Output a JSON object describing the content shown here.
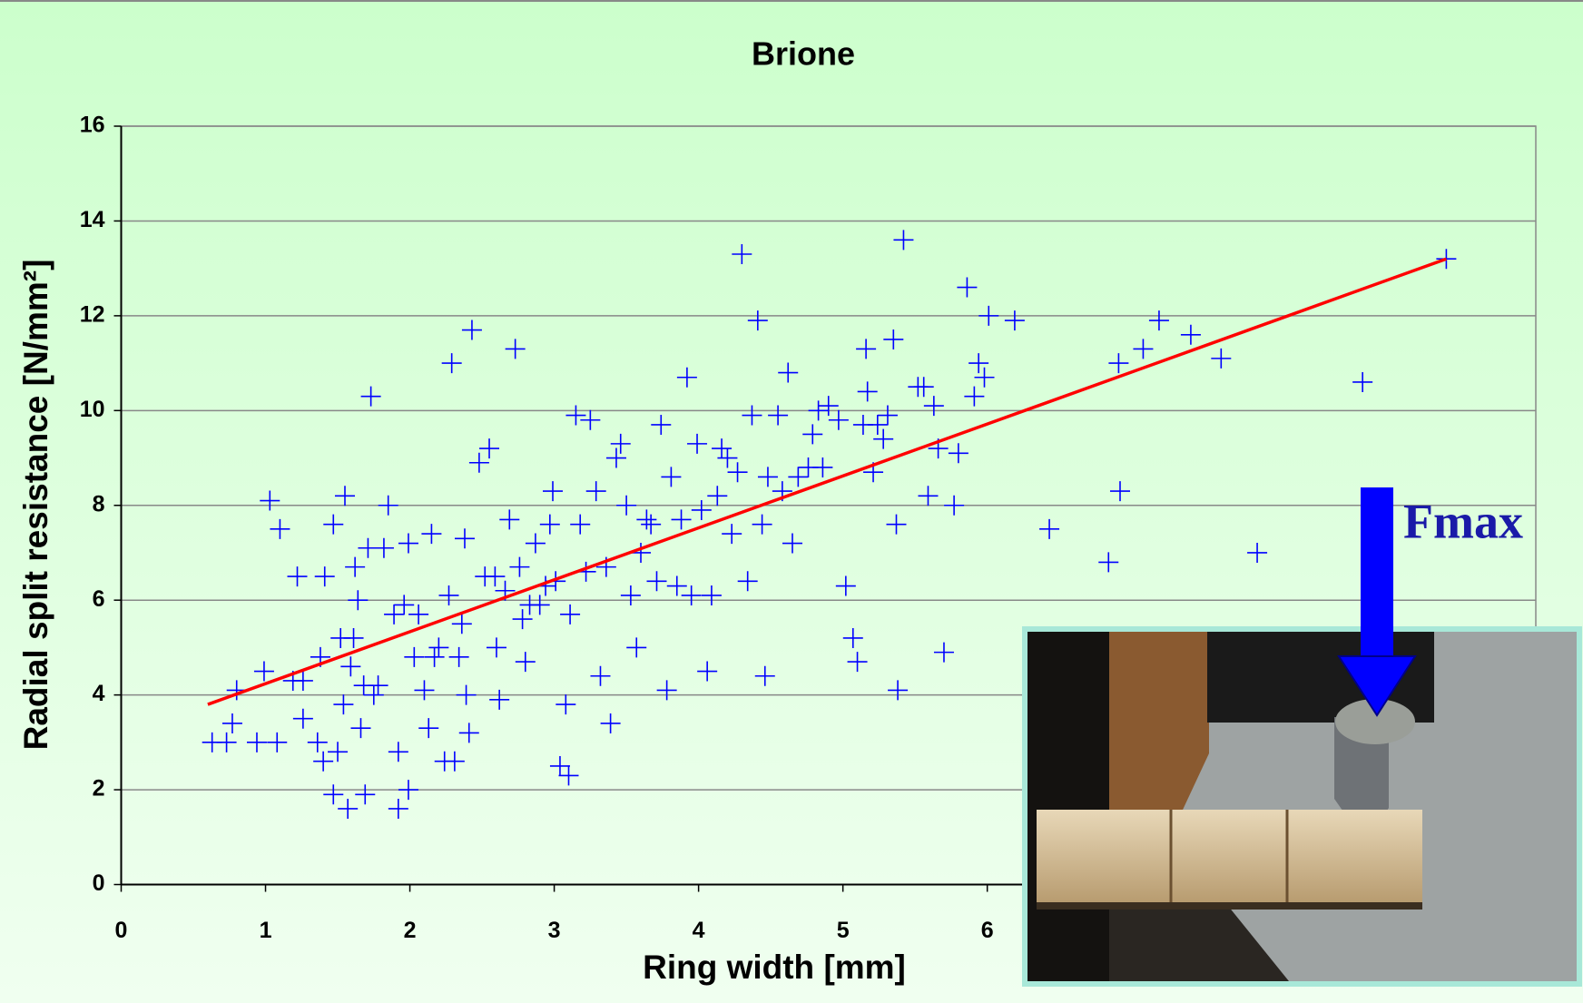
{
  "chart_data": {
    "type": "scatter",
    "title": "Brione",
    "xlabel": "Ring width [mm]",
    "ylabel": "Radial split resistance [N/mm²]",
    "annotation": "Fmax",
    "xlim": [
      0,
      9.8
    ],
    "ylim": [
      0,
      16
    ],
    "xticks": [
      0,
      1,
      2,
      3,
      4,
      5,
      6
    ],
    "yticks": [
      0,
      2,
      4,
      6,
      8,
      10,
      12,
      14,
      16
    ],
    "grid": true,
    "series": [
      {
        "color": "#0000ff",
        "x": [
          0.63,
          0.73,
          0.77,
          0.8,
          0.94,
          0.99,
          1.03,
          1.08,
          1.1,
          1.19,
          1.22,
          1.26,
          1.26,
          1.36,
          1.38,
          1.4,
          1.41,
          1.47,
          1.47,
          1.5,
          1.52,
          1.54,
          1.55,
          1.57,
          1.59,
          1.61,
          1.62,
          1.64,
          1.66,
          1.68,
          1.69,
          1.71,
          1.73,
          1.75,
          1.78,
          1.82,
          1.85,
          1.89,
          1.92,
          1.92,
          1.96,
          1.99,
          1.99,
          2.03,
          2.06,
          2.1,
          2.13,
          2.15,
          2.17,
          2.2,
          2.24,
          2.27,
          2.29,
          2.31,
          2.34,
          2.36,
          2.38,
          2.39,
          2.41,
          2.43,
          2.48,
          2.52,
          2.55,
          2.59,
          2.6,
          2.62,
          2.66,
          2.69,
          2.73,
          2.76,
          2.78,
          2.8,
          2.83,
          2.87,
          2.9,
          2.94,
          2.97,
          2.99,
          3.01,
          3.04,
          3.08,
          3.1,
          3.11,
          3.15,
          3.18,
          3.22,
          3.25,
          3.29,
          3.32,
          3.36,
          3.39,
          3.43,
          3.46,
          3.5,
          3.53,
          3.57,
          3.6,
          3.64,
          3.67,
          3.71,
          3.74,
          3.78,
          3.81,
          3.85,
          3.88,
          3.92,
          3.95,
          3.99,
          4.02,
          4.06,
          4.09,
          4.13,
          4.16,
          4.2,
          4.23,
          4.27,
          4.3,
          4.34,
          4.37,
          4.41,
          4.44,
          4.46,
          4.48,
          4.55,
          4.58,
          4.62,
          4.65,
          4.69,
          4.76,
          4.79,
          4.83,
          4.86,
          4.9,
          4.97,
          5.02,
          5.07,
          5.1,
          5.14,
          5.16,
          5.17,
          5.21,
          5.24,
          5.28,
          5.31,
          5.35,
          5.37,
          5.38,
          5.42,
          5.52,
          5.56,
          5.59,
          5.63,
          5.66,
          5.7,
          5.77,
          5.8,
          5.86,
          5.91,
          5.94,
          5.98,
          6.01,
          6.19,
          6.43,
          6.84,
          6.91,
          6.92,
          7.08,
          7.19,
          7.41,
          7.62,
          7.87,
          8.6,
          9.18
        ],
        "y": [
          3.0,
          3.0,
          3.4,
          4.1,
          3.0,
          4.5,
          8.1,
          3.0,
          7.5,
          4.3,
          6.5,
          4.3,
          3.5,
          3.0,
          4.8,
          2.6,
          6.5,
          7.6,
          1.9,
          2.8,
          5.2,
          3.8,
          8.2,
          1.6,
          4.6,
          5.2,
          6.7,
          6.0,
          3.3,
          4.2,
          1.9,
          7.1,
          10.3,
          4.0,
          4.2,
          7.1,
          8.0,
          5.7,
          2.8,
          1.6,
          5.9,
          7.2,
          2.0,
          4.8,
          5.7,
          4.1,
          3.3,
          7.4,
          4.8,
          5.0,
          2.6,
          6.1,
          11.0,
          2.6,
          4.8,
          5.5,
          7.3,
          4.0,
          3.2,
          11.7,
          8.9,
          6.5,
          9.2,
          6.5,
          5.0,
          3.9,
          6.2,
          7.7,
          11.3,
          6.7,
          5.6,
          4.7,
          5.9,
          7.2,
          5.9,
          6.3,
          7.6,
          8.3,
          6.4,
          2.5,
          3.8,
          2.3,
          5.7,
          9.9,
          7.6,
          6.6,
          9.8,
          8.3,
          4.4,
          6.7,
          3.4,
          9.0,
          9.3,
          8.0,
          6.1,
          5.0,
          7.0,
          7.7,
          7.6,
          6.4,
          9.7,
          4.1,
          8.6,
          6.3,
          7.7,
          10.7,
          6.1,
          9.3,
          7.9,
          4.5,
          6.1,
          8.2,
          9.2,
          9.0,
          7.4,
          8.7,
          13.3,
          6.4,
          9.9,
          11.9,
          7.6,
          4.4,
          8.6,
          9.9,
          8.3,
          10.8,
          7.2,
          8.6,
          8.8,
          9.5,
          10.0,
          8.8,
          10.1,
          9.8,
          6.3,
          5.2,
          4.7,
          9.7,
          11.3,
          10.4,
          8.7,
          9.7,
          9.4,
          9.9,
          11.5,
          7.6,
          4.1,
          13.6,
          10.5,
          10.5,
          8.2,
          10.1,
          9.2,
          4.9,
          8.0,
          9.1,
          12.6,
          10.3,
          11.0,
          10.7,
          12.0,
          11.9,
          7.5,
          6.8,
          11.0,
          8.3,
          11.3,
          11.9,
          11.6,
          11.1,
          7.0,
          10.6,
          13.2
        ]
      }
    ],
    "trendline": {
      "color": "#ff0000",
      "x": [
        0.6,
        9.18
      ],
      "y": [
        3.8,
        13.2
      ]
    }
  }
}
